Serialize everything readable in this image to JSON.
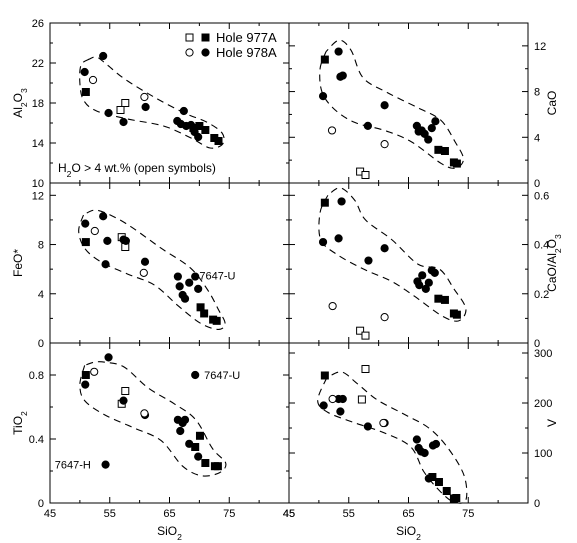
{
  "legend": {
    "hole_977a": "Hole 977A",
    "hole_978a": "Hole 978A",
    "note": "H2O > 4 wt.% (open symbols)"
  },
  "chart_data": [
    {
      "id": "al2o3",
      "type": "scatter",
      "ylabel": "Al2O3",
      "yaxis_side": "left",
      "xlim": [
        45,
        85
      ],
      "ylim": [
        10,
        26
      ],
      "yticks": [
        10,
        14,
        18,
        22,
        26
      ],
      "xticks": [
        45,
        55,
        65,
        75
      ],
      "series": [
        {
          "name": "Hole 977A",
          "marker": "square",
          "filled": true,
          "points": [
            [
              51.0,
              19.1
            ],
            [
              69.0,
              15.5
            ],
            [
              70.0,
              15.7
            ],
            [
              71.0,
              15.3
            ],
            [
              72.5,
              14.5
            ],
            [
              73.2,
              14.2
            ]
          ]
        },
        {
          "name": "Hole 977A",
          "marker": "square",
          "filled": false,
          "points": [
            [
              56.8,
              17.3
            ],
            [
              57.6,
              18.0
            ]
          ]
        },
        {
          "name": "Hole 978A",
          "marker": "circle",
          "filled": true,
          "points": [
            [
              50.8,
              21.1
            ],
            [
              53.9,
              22.7
            ],
            [
              54.8,
              17.0
            ],
            [
              57.3,
              16.1
            ],
            [
              61.0,
              17.6
            ],
            [
              66.3,
              16.2
            ],
            [
              66.9,
              15.9
            ],
            [
              67.4,
              17.2
            ],
            [
              67.8,
              15.7
            ],
            [
              68.6,
              15.8
            ],
            [
              69.2,
              15.1
            ],
            [
              69.8,
              14.6
            ]
          ]
        },
        {
          "name": "Hole 978A",
          "marker": "circle",
          "filled": false,
          "points": [
            [
              52.2,
              20.3
            ],
            [
              60.8,
              18.6
            ]
          ]
        }
      ]
    },
    {
      "id": "cao",
      "type": "scatter",
      "ylabel": "CaO",
      "yaxis_side": "right",
      "xlim": [
        45,
        85
      ],
      "ylim": [
        0,
        14
      ],
      "yticks": [
        0,
        4,
        8,
        12
      ],
      "xticks": [
        45,
        55,
        65,
        75
      ],
      "series": [
        {
          "name": "Hole 977A",
          "marker": "square",
          "filled": true,
          "points": [
            [
              51.0,
              10.8
            ],
            [
              70.0,
              2.9
            ],
            [
              71.1,
              2.8
            ],
            [
              72.6,
              1.8
            ],
            [
              73.1,
              1.7
            ]
          ]
        },
        {
          "name": "Hole 977A",
          "marker": "square",
          "filled": false,
          "points": [
            [
              56.9,
              1.0
            ],
            [
              57.8,
              0.7
            ]
          ]
        },
        {
          "name": "Hole 978A",
          "marker": "circle",
          "filled": true,
          "points": [
            [
              50.7,
              7.6
            ],
            [
              53.3,
              11.5
            ],
            [
              53.6,
              9.3
            ],
            [
              54.0,
              9.4
            ],
            [
              58.2,
              5.0
            ],
            [
              61.0,
              6.8
            ],
            [
              66.4,
              5.0
            ],
            [
              66.7,
              4.5
            ],
            [
              67.2,
              4.6
            ],
            [
              67.7,
              4.3
            ],
            [
              68.3,
              3.8
            ],
            [
              68.9,
              4.8
            ],
            [
              69.5,
              5.4
            ]
          ]
        },
        {
          "name": "Hole 978A",
          "marker": "circle",
          "filled": false,
          "points": [
            [
              52.2,
              4.6
            ],
            [
              61.0,
              3.4
            ]
          ]
        }
      ]
    },
    {
      "id": "feo",
      "type": "scatter",
      "ylabel": "FeO*",
      "yaxis_side": "left",
      "xlim": [
        45,
        85
      ],
      "ylim": [
        0,
        13
      ],
      "yticks": [
        0,
        4,
        8,
        12
      ],
      "xticks": [
        45,
        55,
        65,
        75
      ],
      "annotations": [
        {
          "text": "7647-U",
          "x": 70.0,
          "y": 5.5
        }
      ],
      "series": [
        {
          "name": "Hole 977A",
          "marker": "square",
          "filled": true,
          "points": [
            [
              51.0,
              8.2
            ],
            [
              70.2,
              2.9
            ],
            [
              70.8,
              2.4
            ],
            [
              72.3,
              1.9
            ],
            [
              72.9,
              1.8
            ]
          ]
        },
        {
          "name": "Hole 977A",
          "marker": "square",
          "filled": false,
          "points": [
            [
              57.0,
              8.6
            ],
            [
              57.6,
              7.8
            ]
          ]
        },
        {
          "name": "Hole 978A",
          "marker": "circle",
          "filled": true,
          "points": [
            [
              50.9,
              9.7
            ],
            [
              53.9,
              10.3
            ],
            [
              54.3,
              6.4
            ],
            [
              54.6,
              8.3
            ],
            [
              57.3,
              8.4
            ],
            [
              57.7,
              8.3
            ],
            [
              60.9,
              6.6
            ],
            [
              66.4,
              5.4
            ],
            [
              66.7,
              4.6
            ],
            [
              67.2,
              3.9
            ],
            [
              67.6,
              3.6
            ],
            [
              68.3,
              4.9
            ],
            [
              69.3,
              5.4
            ],
            [
              69.8,
              4.4
            ]
          ]
        },
        {
          "name": "Hole 978A",
          "marker": "circle",
          "filled": false,
          "points": [
            [
              52.5,
              9.1
            ],
            [
              60.7,
              5.7
            ]
          ]
        }
      ]
    },
    {
      "id": "cao_al2o3",
      "type": "scatter",
      "ylabel": "CaO/Al2O3",
      "yaxis_side": "right",
      "xlim": [
        45,
        85
      ],
      "ylim": [
        0,
        0.65
      ],
      "yticks": [
        0,
        0.2,
        0.4,
        0.6
      ],
      "xticks": [
        45,
        55,
        65,
        75
      ],
      "series": [
        {
          "name": "Hole 977A",
          "marker": "square",
          "filled": true,
          "points": [
            [
              51.0,
              0.57
            ],
            [
              70.0,
              0.18
            ],
            [
              71.1,
              0.175
            ],
            [
              72.6,
              0.12
            ],
            [
              73.1,
              0.115
            ]
          ]
        },
        {
          "name": "Hole 977A",
          "marker": "square",
          "filled": false,
          "points": [
            [
              56.9,
              0.05
            ],
            [
              57.8,
              0.03
            ]
          ]
        },
        {
          "name": "Hole 978A",
          "marker": "circle",
          "filled": true,
          "points": [
            [
              50.7,
              0.41
            ],
            [
              53.3,
              0.425
            ],
            [
              53.8,
              0.575
            ],
            [
              58.3,
              0.335
            ],
            [
              61.0,
              0.385
            ],
            [
              66.5,
              0.25
            ],
            [
              66.8,
              0.235
            ],
            [
              67.3,
              0.275
            ],
            [
              67.9,
              0.22
            ],
            [
              68.4,
              0.245
            ],
            [
              68.9,
              0.295
            ],
            [
              69.4,
              0.285
            ]
          ]
        },
        {
          "name": "Hole 978A",
          "marker": "circle",
          "filled": false,
          "points": [
            [
              52.3,
              0.15
            ],
            [
              61.0,
              0.105
            ]
          ]
        }
      ]
    },
    {
      "id": "tio2",
      "type": "scatter",
      "ylabel": "TiO2",
      "xlabel": "SiO2",
      "yaxis_side": "left",
      "xlim": [
        45,
        85
      ],
      "ylim": [
        0,
        1.0
      ],
      "yticks": [
        0,
        0.4,
        0.8
      ],
      "xticks": [
        45,
        55,
        65,
        75
      ],
      "xticklabels": [
        "45",
        "55",
        "65",
        "75"
      ],
      "annotations": [
        {
          "text": "7647-U",
          "x": 70.8,
          "y": 0.8
        },
        {
          "text": "7647-H",
          "x": 45.8,
          "y": 0.24
        }
      ],
      "series": [
        {
          "name": "Hole 977A",
          "marker": "square",
          "filled": true,
          "points": [
            [
              51.0,
              0.8
            ],
            [
              69.3,
              0.35
            ],
            [
              70.1,
              0.42
            ],
            [
              71.0,
              0.25
            ],
            [
              72.6,
              0.23
            ],
            [
              73.1,
              0.23
            ]
          ]
        },
        {
          "name": "Hole 977A",
          "marker": "square",
          "filled": false,
          "points": [
            [
              57.0,
              0.62
            ],
            [
              57.6,
              0.7
            ]
          ]
        },
        {
          "name": "Hole 978A",
          "marker": "circle",
          "filled": true,
          "points": [
            [
              50.9,
              0.74
            ],
            [
              54.3,
              0.24
            ],
            [
              54.8,
              0.91
            ],
            [
              57.3,
              0.64
            ],
            [
              60.9,
              0.55
            ],
            [
              66.4,
              0.52
            ],
            [
              66.8,
              0.45
            ],
            [
              67.2,
              0.5
            ],
            [
              67.6,
              0.52
            ],
            [
              68.3,
              0.37
            ],
            [
              69.3,
              0.8
            ],
            [
              69.8,
              0.29
            ]
          ]
        },
        {
          "name": "Hole 978A",
          "marker": "circle",
          "filled": false,
          "points": [
            [
              52.4,
              0.82
            ],
            [
              60.8,
              0.56
            ]
          ]
        }
      ]
    },
    {
      "id": "v",
      "type": "scatter",
      "ylabel": "V",
      "xlabel": "SiO2",
      "yaxis_side": "right",
      "xlim": [
        45,
        85
      ],
      "ylim": [
        0,
        320
      ],
      "yticks": [
        0,
        100,
        200,
        300
      ],
      "xticks": [
        45,
        55,
        65,
        75
      ],
      "xticklabels": [
        "45",
        "55",
        "65",
        "75"
      ],
      "series": [
        {
          "name": "Hole 977A",
          "marker": "square",
          "filled": true,
          "points": [
            [
              51.0,
              255
            ],
            [
              69.0,
              52
            ],
            [
              70.1,
              42
            ],
            [
              71.4,
              24
            ],
            [
              72.6,
              9
            ],
            [
              73.0,
              10
            ]
          ]
        },
        {
          "name": "Hole 977A",
          "marker": "square",
          "filled": false,
          "points": [
            [
              57.2,
              207
            ],
            [
              57.8,
              268
            ]
          ]
        },
        {
          "name": "Hole 978A",
          "marker": "circle",
          "filled": true,
          "points": [
            [
              50.8,
              195
            ],
            [
              53.3,
              208
            ],
            [
              53.6,
              183
            ],
            [
              54.0,
              208
            ],
            [
              58.2,
              153
            ],
            [
              61.0,
              160
            ],
            [
              66.4,
              127
            ],
            [
              66.7,
              110
            ],
            [
              67.1,
              103
            ],
            [
              67.7,
              100
            ],
            [
              68.4,
              49
            ],
            [
              69.1,
              115
            ],
            [
              69.6,
              118
            ]
          ]
        },
        {
          "name": "Hole 978A",
          "marker": "circle",
          "filled": false,
          "points": [
            [
              52.3,
              208
            ],
            [
              60.8,
              160
            ]
          ]
        }
      ]
    }
  ]
}
